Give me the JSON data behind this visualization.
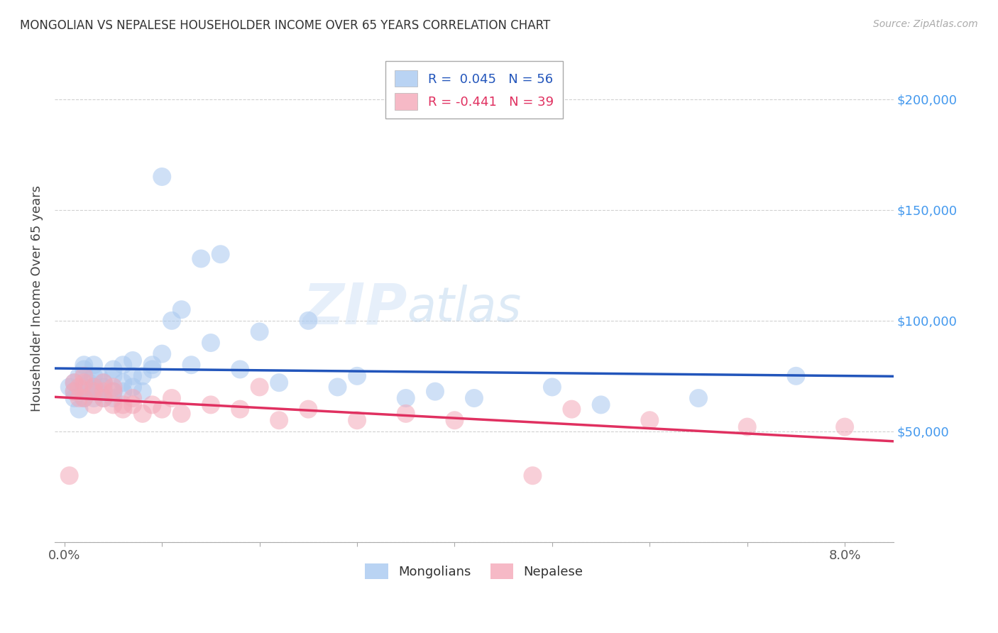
{
  "title": "MONGOLIAN VS NEPALESE HOUSEHOLDER INCOME OVER 65 YEARS CORRELATION CHART",
  "source": "Source: ZipAtlas.com",
  "ylabel": "Householder Income Over 65 years",
  "watermark_ZIP": "ZIP",
  "watermark_atlas": "atlas",
  "legend_mongolians": "Mongolians",
  "legend_nepalese": "Nepalese",
  "R_mongolians": 0.045,
  "N_mongolians": 56,
  "R_nepalese": -0.441,
  "N_nepalese": 39,
  "mongolian_color": "#a8c8f0",
  "nepalese_color": "#f4a8b8",
  "mongolian_line_color": "#2255bb",
  "nepalese_line_color": "#e03060",
  "ylim": [
    0,
    220000
  ],
  "xlim": [
    -0.001,
    0.085
  ],
  "yticks": [
    0,
    50000,
    100000,
    150000,
    200000
  ],
  "mongolians_x": [
    0.0005,
    0.001,
    0.001,
    0.001,
    0.0015,
    0.0015,
    0.002,
    0.002,
    0.002,
    0.002,
    0.0025,
    0.0025,
    0.003,
    0.003,
    0.003,
    0.003,
    0.0035,
    0.0035,
    0.004,
    0.004,
    0.004,
    0.005,
    0.005,
    0.005,
    0.005,
    0.006,
    0.006,
    0.006,
    0.007,
    0.007,
    0.007,
    0.008,
    0.008,
    0.009,
    0.009,
    0.01,
    0.01,
    0.011,
    0.012,
    0.013,
    0.014,
    0.015,
    0.016,
    0.018,
    0.02,
    0.022,
    0.025,
    0.028,
    0.03,
    0.035,
    0.038,
    0.042,
    0.05,
    0.055,
    0.065,
    0.075
  ],
  "mongolians_y": [
    70000,
    65000,
    72000,
    68000,
    75000,
    60000,
    78000,
    65000,
    80000,
    70000,
    72000,
    68000,
    75000,
    65000,
    70000,
    80000,
    75000,
    68000,
    72000,
    65000,
    70000,
    78000,
    68000,
    65000,
    75000,
    72000,
    80000,
    68000,
    75000,
    70000,
    82000,
    68000,
    75000,
    80000,
    78000,
    165000,
    85000,
    100000,
    105000,
    80000,
    128000,
    90000,
    130000,
    78000,
    95000,
    72000,
    100000,
    70000,
    75000,
    65000,
    68000,
    65000,
    70000,
    62000,
    65000,
    75000
  ],
  "nepalese_x": [
    0.0005,
    0.001,
    0.001,
    0.0015,
    0.0015,
    0.002,
    0.002,
    0.002,
    0.003,
    0.003,
    0.003,
    0.004,
    0.004,
    0.004,
    0.005,
    0.005,
    0.005,
    0.006,
    0.006,
    0.007,
    0.007,
    0.008,
    0.009,
    0.01,
    0.011,
    0.012,
    0.015,
    0.018,
    0.02,
    0.022,
    0.025,
    0.03,
    0.035,
    0.04,
    0.048,
    0.052,
    0.06,
    0.07,
    0.08
  ],
  "nepalese_y": [
    30000,
    68000,
    72000,
    65000,
    70000,
    72000,
    65000,
    75000,
    68000,
    62000,
    70000,
    68000,
    65000,
    72000,
    70000,
    62000,
    68000,
    62000,
    60000,
    65000,
    62000,
    58000,
    62000,
    60000,
    65000,
    58000,
    62000,
    60000,
    70000,
    55000,
    60000,
    55000,
    58000,
    55000,
    30000,
    60000,
    55000,
    52000,
    52000
  ]
}
